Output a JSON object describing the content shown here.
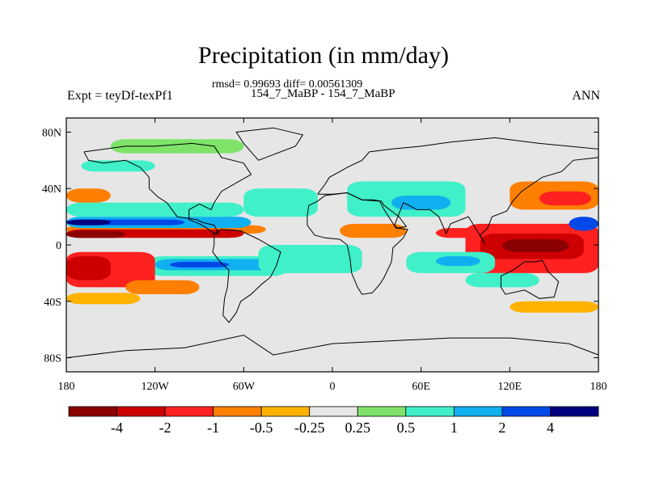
{
  "chart_data": {
    "type": "heatmap",
    "title": "Precipitation (in mm/day)",
    "stats_line": "rmsd= 0.99693 diff= 0.00561309",
    "subtitle": "154_7_MaBP - 154_7_MaBP",
    "left_label": "Expt = teyDf-texPf1",
    "right_label": "ANN",
    "xlim": [
      -180,
      180
    ],
    "ylim": [
      -90,
      90
    ],
    "x_tick_values": [
      -180,
      -120,
      -60,
      0,
      60,
      120,
      180
    ],
    "x_tick_labels": [
      "180",
      "120W",
      "60W",
      "0",
      "60E",
      "120E",
      "180"
    ],
    "y_tick_values": [
      80,
      40,
      0,
      -40,
      -80
    ],
    "y_tick_labels": [
      "80N",
      "40N",
      "0",
      "40S",
      "80S"
    ],
    "colorbar": {
      "colors": [
        "#8b0000",
        "#cc0000",
        "#ff2020",
        "#ff7f00",
        "#ffb300",
        "#e6e6e6",
        "#7fe36a",
        "#40f0c8",
        "#10b0f0",
        "#0048e8",
        "#00007f"
      ],
      "labels": [
        "-4",
        "-2",
        "-1",
        "-0.5",
        "-0.25",
        "0.25",
        "0.5",
        "1",
        "2",
        "4"
      ]
    },
    "anomaly_regions": [
      {
        "lon_min": -180,
        "lon_max": -45,
        "lat_min": 8,
        "lat_max": 14,
        "level": -0.5
      },
      {
        "lon_min": -180,
        "lon_max": -60,
        "lat_min": 5,
        "lat_max": 11,
        "level": -2
      },
      {
        "lon_min": -180,
        "lon_max": -140,
        "lat_min": 5,
        "lat_max": 10,
        "level": -4
      },
      {
        "lon_min": -180,
        "lon_max": -55,
        "lat_min": 12,
        "lat_max": 20,
        "level": 1
      },
      {
        "lon_min": -180,
        "lon_max": -100,
        "lat_min": 14,
        "lat_max": 18,
        "level": 2
      },
      {
        "lon_min": -180,
        "lon_max": -150,
        "lat_min": 14,
        "lat_max": 18,
        "level": 4
      },
      {
        "lon_min": -180,
        "lon_max": -60,
        "lat_min": 20,
        "lat_max": 30,
        "level": 0.5
      },
      {
        "lon_min": -180,
        "lon_max": -150,
        "lat_min": 30,
        "lat_max": 40,
        "level": -0.5
      },
      {
        "lon_min": -125,
        "lon_max": -30,
        "lat_min": -22,
        "lat_max": -8,
        "level": 0.5
      },
      {
        "lon_min": -120,
        "lon_max": -40,
        "lat_min": -18,
        "lat_max": -10,
        "level": 1
      },
      {
        "lon_min": -110,
        "lon_max": -70,
        "lat_min": -16,
        "lat_max": -12,
        "level": 2
      },
      {
        "lon_min": -180,
        "lon_max": -120,
        "lat_min": -30,
        "lat_max": -5,
        "level": -1
      },
      {
        "lon_min": -180,
        "lon_max": -150,
        "lat_min": -25,
        "lat_max": -8,
        "level": -2
      },
      {
        "lon_min": -140,
        "lon_max": -90,
        "lat_min": -35,
        "lat_max": -25,
        "level": -0.5
      },
      {
        "lon_min": -180,
        "lon_max": -130,
        "lat_min": -42,
        "lat_max": -34,
        "level": -0.25
      },
      {
        "lon_min": 90,
        "lon_max": 180,
        "lat_min": -20,
        "lat_max": 15,
        "level": -1
      },
      {
        "lon_min": 100,
        "lon_max": 170,
        "lat_min": -10,
        "lat_max": 8,
        "level": -2
      },
      {
        "lon_min": 115,
        "lon_max": 160,
        "lat_min": -5,
        "lat_max": 4,
        "level": -4
      },
      {
        "lon_min": 120,
        "lon_max": 180,
        "lat_min": 25,
        "lat_max": 45,
        "level": -0.5
      },
      {
        "lon_min": 140,
        "lon_max": 175,
        "lat_min": 28,
        "lat_max": 38,
        "level": -1
      },
      {
        "lon_min": 160,
        "lon_max": 180,
        "lat_min": 10,
        "lat_max": 20,
        "level": 2
      },
      {
        "lon_min": 50,
        "lon_max": 110,
        "lat_min": -20,
        "lat_max": -5,
        "level": 0.5
      },
      {
        "lon_min": 70,
        "lon_max": 100,
        "lat_min": -15,
        "lat_max": -8,
        "level": 1
      },
      {
        "lon_min": 10,
        "lon_max": 90,
        "lat_min": 20,
        "lat_max": 45,
        "level": 0.5
      },
      {
        "lon_min": 40,
        "lon_max": 80,
        "lat_min": 25,
        "lat_max": 35,
        "level": 1
      },
      {
        "lon_min": 5,
        "lon_max": 50,
        "lat_min": 5,
        "lat_max": 15,
        "level": -0.5
      },
      {
        "lon_min": 70,
        "lon_max": 100,
        "lat_min": 5,
        "lat_max": 12,
        "level": -1
      },
      {
        "lon_min": -50,
        "lon_max": 20,
        "lat_min": -20,
        "lat_max": 0,
        "level": 0.5
      },
      {
        "lon_min": -60,
        "lon_max": -10,
        "lat_min": 20,
        "lat_max": 40,
        "level": 0.5
      },
      {
        "lon_min": -150,
        "lon_max": -60,
        "lat_min": 65,
        "lat_max": 75,
        "level": 0.25
      },
      {
        "lon_min": -170,
        "lon_max": -120,
        "lat_min": 52,
        "lat_max": 60,
        "level": 0.5
      },
      {
        "lon_min": 120,
        "lon_max": 180,
        "lat_min": -48,
        "lat_max": -40,
        "level": -0.25
      },
      {
        "lon_min": 90,
        "lon_max": 140,
        "lat_min": -30,
        "lat_max": -20,
        "level": 0.5
      }
    ]
  }
}
